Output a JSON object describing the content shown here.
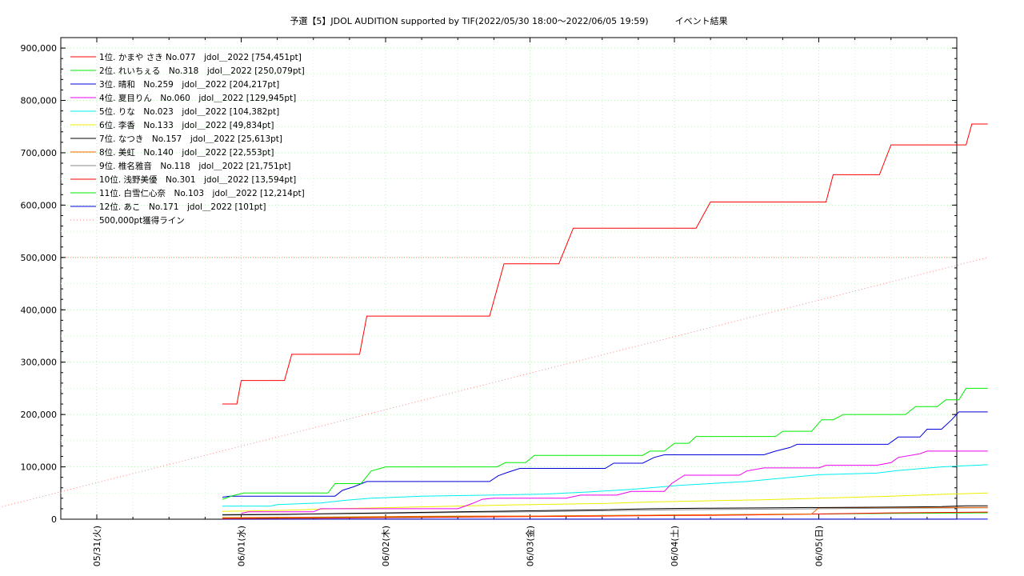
{
  "chart_data": {
    "type": "line",
    "title": "予選【5】JDOL AUDITION supported by TIF(2022/05/30 18:00～2022/06/05 19:59)　　　イベント結果",
    "xlabel": "",
    "ylabel": "",
    "x_tick_labels": [
      "05/31(火)",
      "06/01(水)",
      "06/02(木)",
      "06/03(金)",
      "06/04(土)",
      "06/05(日)"
    ],
    "ylim": [
      0,
      920000
    ],
    "y_ticks": [
      0,
      100000,
      200000,
      300000,
      400000,
      500000,
      600000,
      700000,
      800000,
      900000
    ],
    "y_tick_labels": [
      "0",
      "100,000",
      "200,000",
      "300,000",
      "400,000",
      "500,000",
      "600,000",
      "700,000",
      "800,000",
      "900,000"
    ],
    "grid": true,
    "legend_position": "top-left",
    "series": [
      {
        "name": "1位. かまや さき No.077　jdol＿2022 [754,451pt]",
        "color": "#ff0000",
        "points": [
          [
            1.87,
            220000
          ],
          [
            1.97,
            220000
          ],
          [
            2.0,
            265000
          ],
          [
            2.3,
            265000
          ],
          [
            2.35,
            315000
          ],
          [
            2.82,
            315000
          ],
          [
            2.87,
            388000
          ],
          [
            3.72,
            388000
          ],
          [
            3.82,
            488000
          ],
          [
            4.2,
            488000
          ],
          [
            4.3,
            556000
          ],
          [
            5.15,
            556000
          ],
          [
            5.25,
            606000
          ],
          [
            6.05,
            606000
          ],
          [
            6.1,
            658000
          ],
          [
            6.42,
            658000
          ],
          [
            6.5,
            715000
          ],
          [
            7.02,
            715000
          ],
          [
            7.06,
            755000
          ],
          [
            7.17,
            755000
          ]
        ]
      },
      {
        "name": "2位. れいちぇる　No.318　jdol＿2022 [250,079pt]",
        "color": "#00ee00",
        "points": [
          [
            1.87,
            38000
          ],
          [
            1.94,
            45000
          ],
          [
            2.02,
            50000
          ],
          [
            2.6,
            50000
          ],
          [
            2.65,
            68000
          ],
          [
            2.83,
            68000
          ],
          [
            2.9,
            92000
          ],
          [
            3.0,
            100000
          ],
          [
            3.77,
            100000
          ],
          [
            3.83,
            108000
          ],
          [
            3.97,
            108000
          ],
          [
            4.03,
            122000
          ],
          [
            4.78,
            122000
          ],
          [
            4.83,
            130000
          ],
          [
            4.93,
            130000
          ],
          [
            5.0,
            145000
          ],
          [
            5.1,
            145000
          ],
          [
            5.15,
            158000
          ],
          [
            5.7,
            158000
          ],
          [
            5.75,
            168000
          ],
          [
            5.95,
            168000
          ],
          [
            6.02,
            190000
          ],
          [
            6.1,
            190000
          ],
          [
            6.17,
            200000
          ],
          [
            6.6,
            200000
          ],
          [
            6.67,
            215000
          ],
          [
            6.82,
            215000
          ],
          [
            6.88,
            228000
          ],
          [
            6.97,
            228000
          ],
          [
            7.02,
            250000
          ],
          [
            7.17,
            250000
          ]
        ]
      },
      {
        "name": "3位. 晴和　No.259　jdol＿2022 [204,217pt]",
        "color": "#0000dd",
        "points": [
          [
            1.87,
            42000
          ],
          [
            1.92,
            44000
          ],
          [
            2.3,
            44000
          ],
          [
            2.4,
            44000
          ],
          [
            2.65,
            44000
          ],
          [
            2.7,
            55000
          ],
          [
            2.78,
            62000
          ],
          [
            2.87,
            72000
          ],
          [
            3.72,
            72000
          ],
          [
            3.78,
            83000
          ],
          [
            3.85,
            90000
          ],
          [
            3.93,
            97000
          ],
          [
            4.52,
            97000
          ],
          [
            4.58,
            107000
          ],
          [
            4.78,
            107000
          ],
          [
            4.86,
            118000
          ],
          [
            4.93,
            123000
          ],
          [
            5.62,
            123000
          ],
          [
            5.7,
            130000
          ],
          [
            5.8,
            137000
          ],
          [
            5.85,
            143000
          ],
          [
            6.48,
            143000
          ],
          [
            6.55,
            157000
          ],
          [
            6.7,
            157000
          ],
          [
            6.75,
            172000
          ],
          [
            6.85,
            172000
          ],
          [
            6.92,
            190000
          ],
          [
            6.97,
            205000
          ],
          [
            7.17,
            205000
          ]
        ]
      },
      {
        "name": "4位. 夏目りん　No.060　jdol＿2022 [129,945pt]",
        "color": "#ee00ee",
        "points": [
          [
            2.0,
            11000
          ],
          [
            2.05,
            14000
          ],
          [
            2.5,
            14000
          ],
          [
            2.55,
            20000
          ],
          [
            3.5,
            20000
          ],
          [
            3.6,
            30000
          ],
          [
            3.67,
            38000
          ],
          [
            3.75,
            40000
          ],
          [
            4.25,
            40000
          ],
          [
            4.35,
            46000
          ],
          [
            4.6,
            46000
          ],
          [
            4.7,
            53000
          ],
          [
            4.93,
            53000
          ],
          [
            4.98,
            68000
          ],
          [
            5.07,
            84000
          ],
          [
            5.45,
            84000
          ],
          [
            5.5,
            92000
          ],
          [
            5.62,
            98000
          ],
          [
            6.0,
            98000
          ],
          [
            6.05,
            103000
          ],
          [
            6.4,
            103000
          ],
          [
            6.5,
            108000
          ],
          [
            6.55,
            118000
          ],
          [
            6.7,
            125000
          ],
          [
            6.75,
            130000
          ],
          [
            7.17,
            130000
          ]
        ]
      },
      {
        "name": "5位. りな　No.023　jdol＿2022 [104,382pt]",
        "color": "#00eeee",
        "points": [
          [
            1.87,
            25000
          ],
          [
            2.2,
            25000
          ],
          [
            2.25,
            28000
          ],
          [
            2.55,
            31000
          ],
          [
            2.72,
            36000
          ],
          [
            2.9,
            40000
          ],
          [
            3.25,
            44000
          ],
          [
            3.72,
            46000
          ],
          [
            4.1,
            48000
          ],
          [
            4.4,
            52000
          ],
          [
            4.7,
            57000
          ],
          [
            5.05,
            65000
          ],
          [
            5.5,
            72000
          ],
          [
            5.8,
            80000
          ],
          [
            6.0,
            85000
          ],
          [
            6.4,
            88000
          ],
          [
            6.55,
            93000
          ],
          [
            6.85,
            100000
          ],
          [
            7.17,
            104000
          ]
        ]
      },
      {
        "name": "6位. 李香　No.133　jdol＿2022 [49,834pt]",
        "color": "#eeee00",
        "points": [
          [
            1.87,
            15000
          ],
          [
            2.3,
            17000
          ],
          [
            2.65,
            20000
          ],
          [
            3.0,
            22000
          ],
          [
            3.5,
            25000
          ],
          [
            4.0,
            28000
          ],
          [
            4.5,
            30000
          ],
          [
            4.85,
            33000
          ],
          [
            5.2,
            35000
          ],
          [
            5.6,
            37000
          ],
          [
            6.0,
            40000
          ],
          [
            6.5,
            44000
          ],
          [
            6.8,
            47000
          ],
          [
            7.17,
            50000
          ]
        ]
      },
      {
        "name": "7位. なつき　No.157　jdol＿2022 [25,613pt]",
        "color": "#000000",
        "points": [
          [
            1.87,
            8000
          ],
          [
            2.3,
            9000
          ],
          [
            2.72,
            11000
          ],
          [
            3.0,
            12000
          ],
          [
            3.5,
            14000
          ],
          [
            4.0,
            16000
          ],
          [
            4.5,
            18000
          ],
          [
            4.85,
            20000
          ],
          [
            5.2,
            21000
          ],
          [
            5.8,
            22000
          ],
          [
            6.4,
            23000
          ],
          [
            6.85,
            24000
          ],
          [
            7.02,
            25613
          ],
          [
            7.17,
            25613
          ]
        ]
      },
      {
        "name": "8位. 美虹　No.140　jdol＿2022 [22,553pt]",
        "color": "#ff6600",
        "points": [
          [
            1.87,
            3000
          ],
          [
            2.5,
            4000
          ],
          [
            3.0,
            5000
          ],
          [
            3.5,
            6000
          ],
          [
            4.0,
            6000
          ],
          [
            4.5,
            7000
          ],
          [
            5.0,
            8000
          ],
          [
            5.5,
            9000
          ],
          [
            5.95,
            10000
          ],
          [
            6.0,
            22000
          ],
          [
            6.5,
            22500
          ],
          [
            7.17,
            22553
          ]
        ]
      },
      {
        "name": "9位. 椎名雅音　No.118　jdol＿2022 [21,751pt]",
        "color": "#888888",
        "points": [
          [
            1.87,
            9000
          ],
          [
            2.5,
            10000
          ],
          [
            3.0,
            11000
          ],
          [
            3.5,
            13000
          ],
          [
            4.0,
            14000
          ],
          [
            4.5,
            16000
          ],
          [
            5.0,
            18000
          ],
          [
            5.5,
            19000
          ],
          [
            6.0,
            20000
          ],
          [
            6.5,
            21000
          ],
          [
            7.17,
            21751
          ]
        ]
      },
      {
        "name": "10位. 浅野美優　No.301　jdol＿2022 [13,594pt]",
        "color": "#ff0000",
        "points": [
          [
            1.87,
            1000
          ],
          [
            2.5,
            2000
          ],
          [
            3.0,
            3000
          ],
          [
            3.5,
            4000
          ],
          [
            4.0,
            5000
          ],
          [
            4.5,
            6000
          ],
          [
            5.0,
            7000
          ],
          [
            5.5,
            8000
          ],
          [
            6.0,
            10000
          ],
          [
            6.5,
            12000
          ],
          [
            7.17,
            13594
          ]
        ]
      },
      {
        "name": "11位. 白雪仁心奈　No.103　jdol＿2022 [12,214pt]",
        "color": "#00ee00",
        "points": [
          [
            1.87,
            2000
          ],
          [
            2.5,
            3000
          ],
          [
            3.0,
            4000
          ],
          [
            3.5,
            5000
          ],
          [
            4.0,
            6000
          ],
          [
            4.5,
            7000
          ],
          [
            5.0,
            8000
          ],
          [
            5.5,
            9000
          ],
          [
            6.0,
            10000
          ],
          [
            6.5,
            11000
          ],
          [
            7.17,
            12214
          ]
        ]
      },
      {
        "name": "12位. あこ　No.171　jdol＿2022 [101pt]",
        "color": "#0000dd",
        "points": [
          [
            1.87,
            101
          ],
          [
            7.17,
            101
          ]
        ]
      },
      {
        "name": "500,000pt獲得ライン",
        "color": "#ff8888",
        "dotted": true,
        "points": [
          [
            0.0,
            0
          ],
          [
            7.17,
            500000
          ]
        ]
      }
    ]
  }
}
